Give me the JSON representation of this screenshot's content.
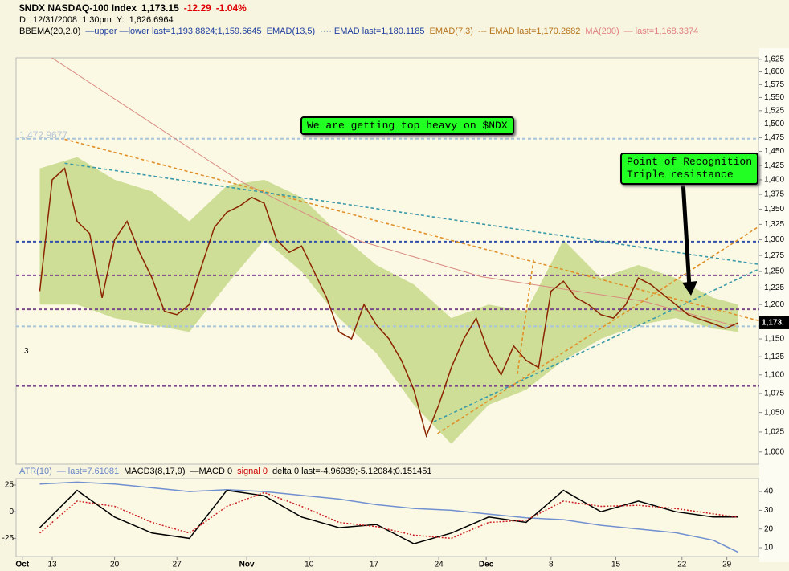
{
  "header": {
    "line1": [
      {
        "text": "$NDX NASDAQ-100 Index",
        "color": "#000000"
      },
      {
        "text": "1,173.15",
        "color": "#000000"
      },
      {
        "text": "-12.29",
        "color": "#dd0000"
      },
      {
        "text": "-1.04%",
        "color": "#dd0000"
      }
    ],
    "line2": [
      {
        "text": "D:",
        "color": "#000000"
      },
      {
        "text": "12/31/2008",
        "color": "#000000"
      },
      {
        "text": "1:30pm",
        "color": "#000000"
      },
      {
        "text": "Y:",
        "color": "#000000"
      },
      {
        "text": "1,626.6964",
        "color": "#000000"
      }
    ],
    "line3": [
      {
        "text": "BBEMA(20,2.0)",
        "color": "#000000"
      },
      {
        "text": "—upper —lower last=1,193.8824;1,159.6645",
        "color": "#1f3fa0"
      },
      {
        "text": "EMAD(13,5)",
        "color": "#1f3fa0"
      },
      {
        "text": "···· EMAD last=1,180.1185",
        "color": "#1f3fa0"
      },
      {
        "text": "EMAD(7,3)",
        "color": "#b8741a"
      },
      {
        "text": "--- EMAD last=1,170.2682",
        "color": "#b8741a"
      },
      {
        "text": "MA(200)",
        "color": "#e08080"
      },
      {
        "text": "— last=1,168.3374",
        "color": "#e08080"
      }
    ],
    "lower_legend": [
      {
        "text": "ATR(10)",
        "color": "#6a86c8"
      },
      {
        "text": "— last=7.61081",
        "color": "#6a86c8"
      },
      {
        "text": "MACD3(8,17,9)",
        "color": "#000000"
      },
      {
        "text": "—MACD 0",
        "color": "#000000"
      },
      {
        "text": "signal 0",
        "color": "#cc0000"
      },
      {
        "text": "delta 0 last=-4.96939;-5.12084;0.151451",
        "color": "#000000"
      }
    ]
  },
  "chart_data": [
    {
      "type": "line",
      "log_scale": true,
      "x": [
        0,
        1,
        2,
        3,
        4,
        5,
        6,
        7,
        8,
        9,
        10,
        11,
        12,
        13,
        14,
        15,
        16,
        17,
        18,
        19,
        20,
        21,
        22,
        23,
        24,
        25,
        26,
        27,
        28,
        29,
        30,
        31,
        32,
        33,
        34,
        35,
        36,
        37,
        38,
        39,
        40,
        41,
        42,
        43,
        44,
        45,
        46,
        47,
        48,
        49,
        50,
        51,
        52,
        53,
        54,
        55,
        56
      ],
      "series": [
        {
          "color": "#8b2500",
          "values": [
            1220,
            1400,
            1420,
            1330,
            1310,
            1210,
            1300,
            1330,
            1280,
            1240,
            1190,
            1185,
            1200,
            1260,
            1320,
            1345,
            1355,
            1370,
            1360,
            1300,
            1280,
            1290,
            1250,
            1210,
            1160,
            1150,
            1200,
            1170,
            1150,
            1120,
            1080,
            1020,
            1060,
            1110,
            1150,
            1180,
            1130,
            1100,
            1140,
            1120,
            1110,
            1220,
            1235,
            1210,
            1200,
            1185,
            1180,
            1200,
            1240,
            1230,
            1215,
            1200,
            1185,
            1178,
            1172,
            1165,
            1173.15
          ]
        }
      ],
      "band": {
        "color": "#c5d98a",
        "x": [
          0,
          3,
          6,
          9,
          12,
          15,
          18,
          21,
          24,
          27,
          30,
          33,
          36,
          39,
          42,
          45,
          48,
          51,
          54,
          56
        ],
        "upper": [
          1420,
          1440,
          1400,
          1380,
          1330,
          1390,
          1400,
          1370,
          1310,
          1260,
          1230,
          1180,
          1200,
          1190,
          1300,
          1240,
          1260,
          1240,
          1210,
          1200
        ],
        "lower": [
          1200,
          1200,
          1180,
          1170,
          1160,
          1230,
          1300,
          1250,
          1180,
          1130,
          1060,
          1010,
          1060,
          1080,
          1120,
          1150,
          1170,
          1180,
          1165,
          1160
        ]
      },
      "ma": {
        "color": "#d98a80",
        "x": [
          0.55,
          16.05,
          25.7,
          35.4,
          48.4,
          55.8
        ],
        "values": [
          1635,
          1398,
          1298,
          1242,
          1205,
          1168.3374
        ]
      },
      "reference_lines": [
        {
          "value": 1472.9677,
          "color": "#a8c4d8"
        },
        {
          "value": 1297,
          "color": "#3050a8"
        },
        {
          "value": 1244,
          "color": "#7a4a8a"
        },
        {
          "value": 1193,
          "color": "#7a4a8a"
        },
        {
          "value": 1168,
          "color": "#a8c4d8"
        },
        {
          "value": 1085,
          "color": "#7a4a8a"
        }
      ],
      "trendlines": [
        {
          "color": "#e0902a",
          "x": [
            2,
            57.7
          ],
          "y": [
            1472,
            1176
          ]
        },
        {
          "color": "#3a9aa8",
          "x": [
            2,
            57.7
          ],
          "y": [
            1429,
            1261
          ]
        },
        {
          "color": "#3a9aa8",
          "x": [
            31.6,
            57.7
          ],
          "y": [
            1038,
            1254
          ]
        },
        {
          "color": "#e0902a",
          "x": [
            31.9,
            57.7
          ],
          "y": [
            1023,
            1322
          ]
        },
        {
          "color": "#e0902a",
          "x": [
            38.3,
            39.6
          ],
          "y": [
            1101,
            1268
          ]
        }
      ],
      "xlim": [
        -1.9,
        57.7
      ],
      "ylim": [
        985,
        1628
      ],
      "yticks": [
        {
          "value": 1000,
          "label": "1,000"
        },
        {
          "value": 1025,
          "label": "1,025"
        },
        {
          "value": 1050,
          "label": "1,050"
        },
        {
          "value": 1075,
          "label": "1,075"
        },
        {
          "value": 1100,
          "label": "1,100"
        },
        {
          "value": 1125,
          "label": "1,125"
        },
        {
          "value": 1150,
          "label": "1,150"
        },
        {
          "value": 1175,
          "label": "1,175"
        },
        {
          "value": 1200,
          "label": "1,200"
        },
        {
          "value": 1225,
          "label": "1,225"
        },
        {
          "value": 1250,
          "label": "1,250"
        },
        {
          "value": 1275,
          "label": "1,275"
        },
        {
          "value": 1300,
          "label": "1,300"
        },
        {
          "value": 1325,
          "label": "1,325"
        },
        {
          "value": 1350,
          "label": "1,350"
        },
        {
          "value": 1375,
          "label": "1,375"
        },
        {
          "value": 1400,
          "label": "1,400"
        },
        {
          "value": 1425,
          "label": "1,425"
        },
        {
          "value": 1450,
          "label": "1,450"
        },
        {
          "value": 1475,
          "label": "1,475"
        },
        {
          "value": 1500,
          "label": "1,500"
        },
        {
          "value": 1525,
          "label": "1,525"
        },
        {
          "value": 1550,
          "label": "1,550"
        },
        {
          "value": 1575,
          "label": "1,575"
        },
        {
          "value": 1600,
          "label": "1,600"
        },
        {
          "value": 1625,
          "label": "1,625"
        }
      ],
      "annotations": {
        "high_label": "1,472.9677",
        "note": "We are getting top heavy on $NDX",
        "recognition_1": "Point of Recognition",
        "recognition_2": "Triple resistance",
        "marker": "3",
        "price_tag": "1,173."
      }
    },
    {
      "type": "line",
      "x": [
        0,
        3,
        6,
        9,
        12,
        15,
        18,
        21,
        24,
        27,
        30,
        33,
        36,
        39,
        42,
        45,
        48,
        51,
        54,
        56
      ],
      "series": [
        {
          "color": "#7090d0",
          "axis": "y2",
          "values": [
            44,
            45,
            44,
            42,
            40,
            41,
            40,
            38,
            36,
            33,
            31,
            30,
            28,
            26,
            25,
            22,
            20,
            18,
            14,
            7.61081
          ]
        },
        {
          "color": "#000000",
          "values": [
            -15,
            20,
            -5,
            -20,
            -25,
            20,
            15,
            -5,
            -15,
            -12,
            -30,
            -20,
            -5,
            -10,
            20,
            0,
            10,
            0,
            -5,
            -4.96939
          ]
        },
        {
          "color": "#cc2020",
          "dashed": true,
          "values": [
            -20,
            10,
            5,
            -10,
            -20,
            5,
            18,
            5,
            -10,
            -14,
            -22,
            -25,
            -10,
            -8,
            10,
            5,
            6,
            3,
            -2,
            -5.12084
          ]
        }
      ],
      "xlim": [
        -1.9,
        57.7
      ],
      "ylim": [
        -42,
        31
      ],
      "yticks": [
        25,
        0,
        -25
      ],
      "y2lim": [
        5.3,
        46.9
      ],
      "y2ticks": [
        40,
        30,
        20,
        10
      ],
      "xticks": [
        {
          "value": -1.4,
          "label": "Oct"
        },
        {
          "value": 1,
          "label": "13"
        },
        {
          "value": 6,
          "label": "20"
        },
        {
          "value": 11,
          "label": "27"
        },
        {
          "value": 16.6,
          "label": "Nov"
        },
        {
          "value": 21.6,
          "label": "10"
        },
        {
          "value": 26.8,
          "label": "17"
        },
        {
          "value": 32,
          "label": "24"
        },
        {
          "value": 35.8,
          "label": "Dec"
        },
        {
          "value": 41,
          "label": "8"
        },
        {
          "value": 46.2,
          "label": "15"
        },
        {
          "value": 51.5,
          "label": "22"
        },
        {
          "value": 55.1,
          "label": "29"
        }
      ]
    }
  ]
}
